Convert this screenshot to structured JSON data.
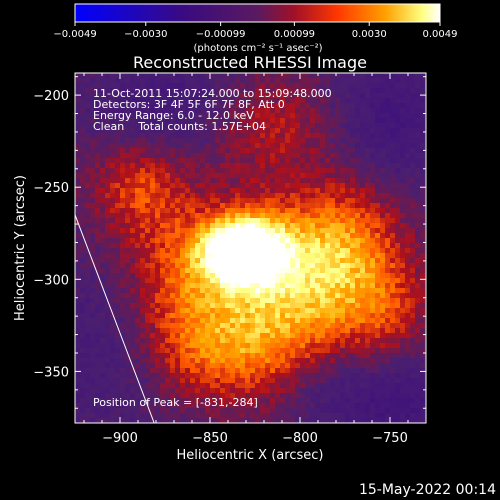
{
  "chart_data": {
    "type": "heatmap",
    "title": "Reconstructed RHESSI Image",
    "xlabel": "Heliocentric X (arcsec)",
    "ylabel": "Heliocentric Y (arcsec)",
    "xlim": [
      -925,
      -730
    ],
    "ylim": [
      -378,
      -188
    ],
    "x_ticks": [
      -900,
      -850,
      -800,
      -750
    ],
    "y_ticks": [
      -200,
      -250,
      -300,
      -350
    ],
    "x_tick_labels": [
      "−900",
      "−850",
      "−800",
      "−750"
    ],
    "y_tick_labels": [
      "−200",
      "−250",
      "−300",
      "−350"
    ],
    "colorbar": {
      "min": -0.0049,
      "max": 0.0049,
      "ticks": [
        -0.0049,
        -0.003,
        -0.00099,
        0.00099,
        0.003,
        0.0049
      ],
      "tick_labels": [
        "−0.0049",
        "−0.0030",
        "−0.00099",
        "0.00099",
        "0.0030",
        "0.0049"
      ],
      "units": "(photons cm⁻² s⁻¹ asec⁻²)"
    },
    "annotations": {
      "time_range": "11-Oct-2011 15:07:24.000 to 15:09:48.000",
      "detectors": "Detectors: 3F 4F 5F 6F 7F 8F, Att 0",
      "energy_range": "Energy Range: 6.0 - 12.0 keV",
      "clean_counts": "Clean    Total counts: 1.57E+04",
      "peak_position": "Position of Peak = [-831,-284]"
    },
    "peak": {
      "x": -831,
      "y": -284
    },
    "emission_sources": [
      {
        "x": -831,
        "y": -284,
        "amplitude": 1.0,
        "sx": 16,
        "sy": 13
      },
      {
        "x": -800,
        "y": -300,
        "amplitude": 0.55,
        "sx": 28,
        "sy": 30
      },
      {
        "x": -865,
        "y": -300,
        "amplitude": 0.45,
        "sx": 30,
        "sy": 28
      },
      {
        "x": -840,
        "y": -340,
        "amplitude": 0.4,
        "sx": 35,
        "sy": 20
      },
      {
        "x": -890,
        "y": -250,
        "amplitude": 0.35,
        "sx": 20,
        "sy": 18
      },
      {
        "x": -770,
        "y": -280,
        "amplitude": 0.35,
        "sx": 22,
        "sy": 28
      },
      {
        "x": -820,
        "y": -215,
        "amplitude": 0.3,
        "sx": 25,
        "sy": 20
      },
      {
        "x": -750,
        "y": -320,
        "amplitude": 0.25,
        "sx": 18,
        "sy": 20
      }
    ],
    "negative_sources": [
      {
        "x": -870,
        "y": -205,
        "amplitude": 0.25,
        "sx": 30,
        "sy": 18
      },
      {
        "x": -750,
        "y": -215,
        "amplitude": 0.3,
        "sx": 20,
        "sy": 25
      },
      {
        "x": -905,
        "y": -330,
        "amplitude": 0.25,
        "sx": 25,
        "sy": 35
      },
      {
        "x": -745,
        "y": -365,
        "amplitude": 0.3,
        "sx": 25,
        "sy": 18
      },
      {
        "x": -785,
        "y": -360,
        "amplitude": 0.15,
        "sx": 18,
        "sy": 18
      }
    ],
    "limb_line": {
      "x1": -925,
      "y1": -265,
      "x2": -881,
      "y2": -378
    },
    "colors": {
      "background": "#000000",
      "foreground": "#ffffff",
      "colormap_neg": [
        "#0000ff",
        "#3a0b80",
        "#4a1f70"
      ],
      "colormap_pos": [
        "#4a1f70",
        "#6a1a50",
        "#b0101a",
        "#ff5a00",
        "#ffa800",
        "#ffff80",
        "#ffffff"
      ]
    }
  },
  "footer": {
    "timestamp": "15-May-2022 00:14"
  }
}
